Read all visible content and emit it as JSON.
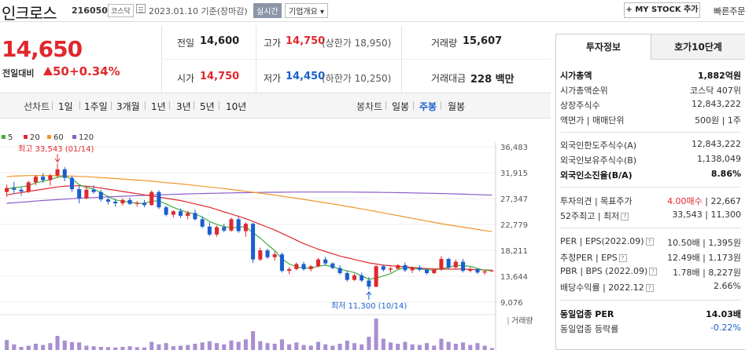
{
  "header": {
    "company_name": "인크로스",
    "code": "216050",
    "market": "코스닥",
    "date_text": "2023.01.10 기준(장마감)",
    "realtime_label": "실시간",
    "company_info_label": "기업개요 ▾",
    "my_stock_label": "+ MY STOCK 추가",
    "quick_order_label": "빠른주문"
  },
  "price": {
    "current": "14,650",
    "change_label": "전일대비",
    "change_value": "50",
    "change_pct": "+0.34%"
  },
  "quote": {
    "prev_close_label": "전일",
    "prev_close": "14,600",
    "high_label": "고가",
    "high": "14,750",
    "upper_limit": "(상한가 18,950)",
    "volume_label": "거래량",
    "volume": "15,607",
    "open_label": "시가",
    "open": "14,750",
    "low_label": "저가",
    "low": "14,450",
    "lower_limit": "(하한가 10,250)",
    "amount_label": "거래대금",
    "amount": "228 백만"
  },
  "periods": {
    "line_label": "선차트",
    "line_items": [
      "1일",
      "1주일",
      "3개월",
      "1년",
      "3년",
      "5년",
      "10년"
    ],
    "candle_label": "봉차트",
    "candle_items": [
      "일봉",
      "주봉",
      "월봉"
    ],
    "active_candle": "주봉"
  },
  "colors": {
    "up": "#e0282e",
    "down": "#1a5fcf",
    "ma5": "#3fae3f",
    "ma20": "#e0282e",
    "ma60": "#f0962a",
    "ma120": "#8e5cc8",
    "volume": "#a88fd0"
  },
  "chart_data": {
    "type": "candlestick",
    "legend": [
      {
        "name": "5",
        "color": "#3fae3f"
      },
      {
        "name": "20",
        "color": "#e0282e"
      },
      {
        "name": "60",
        "color": "#f0962a"
      },
      {
        "name": "120",
        "color": "#8e5cc8"
      }
    ],
    "y_ticks": [
      "36,483",
      "31,915",
      "27,347",
      "22,779",
      "18,211",
      "13,644",
      "9,076"
    ],
    "ylim": [
      9076,
      36483
    ],
    "high_annotation": "최고 33,543 (01/14)",
    "low_annotation": "최저 11,300 (10/14)",
    "volume_label": "거래량",
    "weekly_ohlc": [
      [
        28500,
        29800,
        27600,
        29200
      ],
      [
        29200,
        30300,
        28200,
        28900
      ],
      [
        28900,
        29400,
        27800,
        28600
      ],
      [
        28600,
        30500,
        28300,
        30200
      ],
      [
        30200,
        31500,
        29700,
        31200
      ],
      [
        31200,
        31800,
        30100,
        30600
      ],
      [
        30600,
        31700,
        29600,
        31400
      ],
      [
        31400,
        33543,
        31000,
        32500
      ],
      [
        32500,
        32900,
        30400,
        31000
      ],
      [
        31000,
        31300,
        28500,
        29000
      ],
      [
        29000,
        29600,
        26500,
        27400
      ],
      [
        27400,
        29400,
        27200,
        28900
      ],
      [
        28900,
        29700,
        28200,
        28500
      ],
      [
        28500,
        28900,
        26800,
        27200
      ],
      [
        27200,
        27800,
        26300,
        26800
      ],
      [
        26800,
        27300,
        25900,
        26500
      ],
      [
        26500,
        27400,
        26100,
        27100
      ],
      [
        27100,
        27500,
        26200,
        26400
      ],
      [
        26400,
        26900,
        25900,
        26600
      ],
      [
        26600,
        27100,
        25800,
        26200
      ],
      [
        26200,
        28800,
        26100,
        28500
      ],
      [
        28500,
        28800,
        25500,
        25800
      ],
      [
        25800,
        26100,
        24200,
        24500
      ],
      [
        24500,
        25300,
        24000,
        25100
      ],
      [
        25100,
        25600,
        23900,
        24300
      ],
      [
        24300,
        25200,
        23700,
        24800
      ],
      [
        24800,
        25400,
        23500,
        23700
      ],
      [
        23700,
        24200,
        22100,
        22400
      ],
      [
        22400,
        23100,
        20700,
        21000
      ],
      [
        21000,
        22600,
        20600,
        22300
      ],
      [
        22300,
        22900,
        21400,
        21700
      ],
      [
        21700,
        24000,
        21500,
        23700
      ],
      [
        23700,
        24100,
        21300,
        21600
      ],
      [
        21600,
        23200,
        20600,
        22900
      ],
      [
        22900,
        23100,
        16000,
        16600
      ],
      [
        16600,
        18700,
        16300,
        18200
      ],
      [
        18200,
        18500,
        16700,
        17000
      ],
      [
        17000,
        18000,
        16400,
        17500
      ],
      [
        17500,
        17800,
        14300,
        14600
      ],
      [
        14600,
        15300,
        14000,
        14900
      ],
      [
        14900,
        16100,
        14700,
        15800
      ],
      [
        15800,
        16200,
        14600,
        14900
      ],
      [
        14900,
        15600,
        14500,
        15400
      ],
      [
        15400,
        16900,
        15200,
        16600
      ],
      [
        16600,
        17100,
        15600,
        15900
      ],
      [
        15900,
        16100,
        14900,
        15100
      ],
      [
        15100,
        15600,
        13900,
        14200
      ],
      [
        14200,
        14600,
        12700,
        13000
      ],
      [
        13000,
        14100,
        12800,
        13800
      ],
      [
        13800,
        14300,
        12600,
        12900
      ],
      [
        12900,
        13500,
        11300,
        11800
      ],
      [
        11800,
        15600,
        11700,
        15400
      ],
      [
        15400,
        15700,
        14500,
        14800
      ],
      [
        14800,
        15300,
        14300,
        15000
      ],
      [
        15000,
        15800,
        14800,
        15600
      ],
      [
        15600,
        16100,
        14400,
        14700
      ],
      [
        14700,
        15400,
        14200,
        15200
      ],
      [
        15200,
        15600,
        14500,
        14800
      ],
      [
        14800,
        15100,
        13900,
        14200
      ],
      [
        14200,
        15000,
        14000,
        14800
      ],
      [
        14800,
        17200,
        14600,
        16700
      ],
      [
        16700,
        16900,
        14900,
        15200
      ],
      [
        15200,
        16600,
        15000,
        16200
      ],
      [
        16200,
        16700,
        14300,
        14600
      ],
      [
        14600,
        15300,
        14300,
        14900
      ],
      [
        14900,
        15100,
        14000,
        14300
      ],
      [
        14300,
        14700,
        13900,
        14500
      ],
      [
        14600,
        14750,
        14450,
        14650
      ]
    ],
    "volumes": [
      32,
      18,
      10,
      14,
      20,
      16,
      22,
      45,
      30,
      25,
      24,
      14,
      12,
      10,
      9,
      8,
      10,
      12,
      9,
      8,
      26,
      18,
      22,
      12,
      14,
      16,
      20,
      24,
      28,
      22,
      18,
      30,
      26,
      34,
      60,
      28,
      22,
      20,
      34,
      18,
      24,
      16,
      14,
      26,
      18,
      14,
      20,
      30,
      22,
      18,
      42,
      100,
      36,
      24,
      20,
      26,
      18,
      16,
      22,
      14,
      36,
      26,
      20,
      24,
      16,
      22,
      14,
      6
    ],
    "ma5": [
      29000,
      29300,
      29400,
      29600,
      30100,
      30400,
      30700,
      31100,
      31300,
      30800,
      29800,
      29300,
      29000,
      28400,
      27700,
      27100,
      26900,
      26700,
      26500,
      26500,
      26900,
      26900,
      26400,
      25800,
      25300,
      24900,
      24600,
      24100,
      23300,
      22800,
      22400,
      22200,
      22300,
      22400,
      21300,
      20400,
      19200,
      18200,
      16700,
      15800,
      15300,
      15100,
      15100,
      15400,
      15600,
      15300,
      14900,
      14600,
      14300,
      13700,
      13100,
      13300,
      13700,
      14100,
      14800,
      15200,
      15000,
      14900,
      14800,
      14700,
      15000,
      15200,
      15600,
      15500,
      15400,
      15000,
      14700,
      14600
    ],
    "ma20": [
      28000,
      28200,
      28400,
      28600,
      28800,
      29000,
      29200,
      29400,
      29500,
      29600,
      29600,
      29500,
      29400,
      29200,
      29000,
      28800,
      28600,
      28400,
      28200,
      28000,
      27800,
      27600,
      27400,
      27200,
      27000,
      26700,
      26400,
      26100,
      25800,
      25400,
      25000,
      24600,
      24200,
      23800,
      23300,
      22800,
      22300,
      21800,
      21200,
      20600,
      20000,
      19400,
      18900,
      18400,
      18000,
      17600,
      17200,
      16900,
      16600,
      16300,
      16000,
      15800,
      15600,
      15500,
      15400,
      15300,
      15200,
      15100,
      15000,
      14950,
      14900,
      14900,
      14900,
      14900,
      14850,
      14800,
      14750,
      14700
    ],
    "ma60": [
      31200,
      31300,
      31350,
      31400,
      31400,
      31400,
      31400,
      31380,
      31350,
      31300,
      31250,
      31200,
      31120,
      31040,
      30960,
      30880,
      30800,
      30700,
      30600,
      30500,
      30400,
      30280,
      30160,
      30040,
      29920,
      29800,
      29660,
      29520,
      29380,
      29240,
      29100,
      28940,
      28780,
      28620,
      28460,
      28300,
      28120,
      27940,
      27760,
      27580,
      27400,
      27200,
      27000,
      26800,
      26600,
      26400,
      26180,
      25960,
      25740,
      25520,
      25300,
      25060,
      24820,
      24580,
      24340,
      24100,
      23860,
      23620,
      23380,
      23140,
      22900,
      22700,
      22500,
      22300,
      22100,
      21900,
      21700,
      21500
    ],
    "ma120": [
      26500,
      26600,
      26700,
      26800,
      26900,
      27000,
      27080,
      27160,
      27240,
      27320,
      27400,
      27460,
      27520,
      27580,
      27640,
      27700,
      27750,
      27800,
      27850,
      27900,
      27950,
      28000,
      28040,
      28080,
      28120,
      28160,
      28200,
      28230,
      28260,
      28290,
      28320,
      28350,
      28370,
      28390,
      28410,
      28430,
      28450,
      28460,
      28470,
      28480,
      28490,
      28500,
      28500,
      28500,
      28500,
      28500,
      28500,
      28490,
      28480,
      28470,
      28460,
      28450,
      28430,
      28410,
      28390,
      28370,
      28350,
      28320,
      28290,
      28260,
      28230,
      28200,
      28160,
      28120,
      28080,
      28040,
      28000,
      27960
    ]
  },
  "side": {
    "tab_invest": "투자정보",
    "tab_orderbook": "호가10단계",
    "rows": [
      {
        "label": "시가총액",
        "value": "1,882억원"
      },
      {
        "label": "시가총액순위",
        "value": "코스닥 407위"
      },
      {
        "label": "상장주식수",
        "value": "12,843,222"
      },
      {
        "label": "액면가 | 매매단위",
        "value": "500원 | 1주"
      },
      {
        "label": "외국인한도주식수(A)",
        "value": "12,843,222"
      },
      {
        "label": "외국인보유주식수(B)",
        "value": "1,138,049"
      },
      {
        "label": "외국인소진율(B/A)",
        "value": "8.86%"
      },
      {
        "label": "투자의견 | 목표주가",
        "value_a": "4.00매수",
        "value_b": "| 22,667"
      },
      {
        "label": "52주최고 | 최저",
        "value": "33,543 | 11,300"
      },
      {
        "label": "PER | EPS(2022.09)",
        "value": "10.50배 | 1,395원"
      },
      {
        "label": "추정PER | EPS",
        "value": "12.49배 | 1,173원"
      },
      {
        "label": "PBR | BPS (2022.09)",
        "value": "1.78배 | 8,227원"
      },
      {
        "label": "배당수익률 | 2022.12",
        "value": "2.66%"
      },
      {
        "label": "동일업종 PER",
        "value": "14.03배"
      },
      {
        "label": "동일업종 등락률",
        "value": "-0.22%"
      }
    ]
  }
}
